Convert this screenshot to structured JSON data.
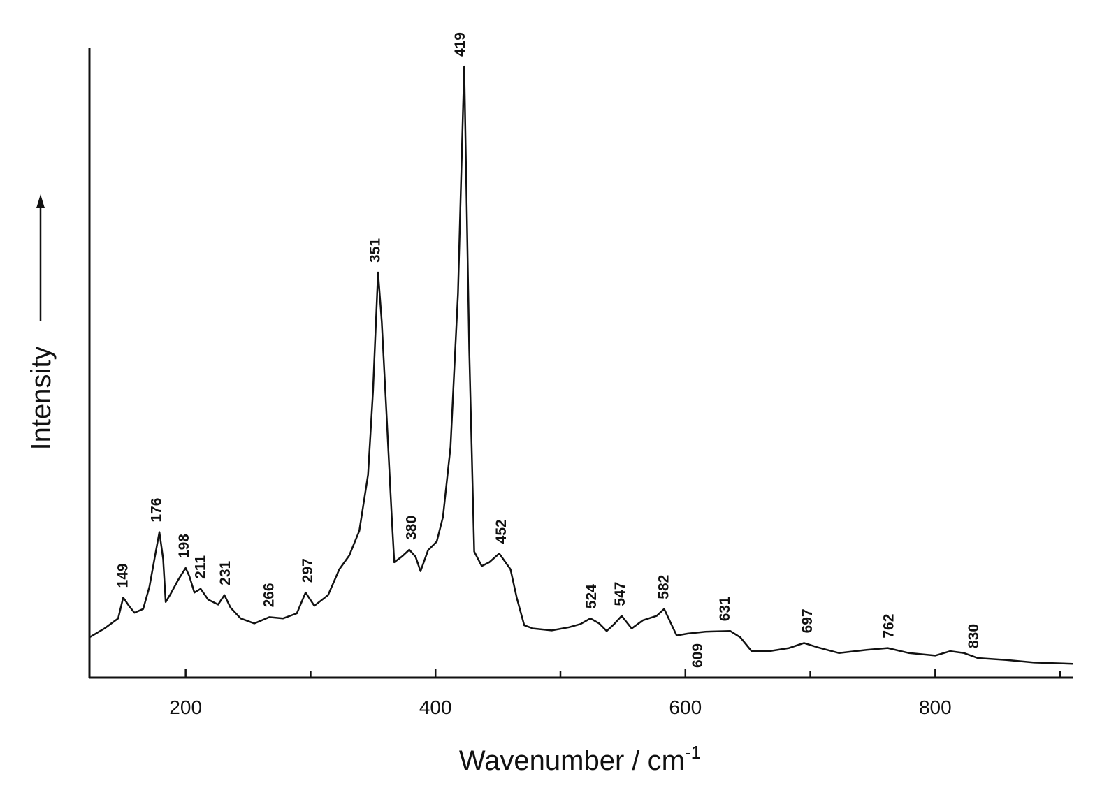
{
  "chart_data": {
    "type": "line",
    "xlabel": {
      "text": "Wavenumber / cm",
      "superscript": "-1"
    },
    "ylabel": "Intensity",
    "xlim": [
      123,
      910
    ],
    "ylim": [
      0,
      100
    ],
    "xticks": [
      200,
      400,
      600,
      800
    ],
    "xminor_ticks": [
      300,
      500,
      700,
      900
    ],
    "color": "#111111",
    "x": [
      123,
      135,
      146,
      150,
      155,
      159,
      166,
      171,
      175,
      179,
      182,
      184,
      188,
      194,
      200,
      203,
      207,
      212,
      218,
      226,
      231,
      236,
      244,
      255,
      267,
      278,
      289,
      296,
      303,
      314,
      323,
      331,
      339,
      346,
      350,
      354,
      357,
      361,
      365,
      367,
      373,
      379,
      384,
      388,
      394,
      401,
      406,
      412,
      418,
      423,
      427,
      431,
      437,
      443,
      451,
      460,
      465,
      471,
      478,
      493,
      507,
      516,
      524,
      531,
      537,
      543,
      549,
      557,
      566,
      577,
      583,
      588,
      593,
      602,
      616,
      636,
      644,
      653,
      667,
      683,
      695,
      706,
      723,
      745,
      762,
      779,
      800,
      812,
      823,
      834,
      857,
      879,
      910
    ],
    "values": [
      6.4,
      7.8,
      9.4,
      12.7,
      11.3,
      10.3,
      10.9,
      14.4,
      18.8,
      23.1,
      18.8,
      12.0,
      13.3,
      15.5,
      17.4,
      16.1,
      13.5,
      14.1,
      12.4,
      11.6,
      13.1,
      11.1,
      9.4,
      8.6,
      9.6,
      9.4,
      10.2,
      13.5,
      11.4,
      13.1,
      17.2,
      19.4,
      23.3,
      32.2,
      45.5,
      64.3,
      56.5,
      41.0,
      25.5,
      18.3,
      19.2,
      20.3,
      19.2,
      16.9,
      20.2,
      21.6,
      25.5,
      36.6,
      61.0,
      97.0,
      52.1,
      20.0,
      17.7,
      18.3,
      19.7,
      17.2,
      12.7,
      8.3,
      7.8,
      7.5,
      8.0,
      8.5,
      9.4,
      8.6,
      7.4,
      8.5,
      9.8,
      7.8,
      9.1,
      9.8,
      10.9,
      8.8,
      6.7,
      7.0,
      7.3,
      7.4,
      6.4,
      4.2,
      4.2,
      4.7,
      5.5,
      4.8,
      3.9,
      4.4,
      4.7,
      3.9,
      3.5,
      4.2,
      3.9,
      3.1,
      2.8,
      2.4,
      2.2
    ],
    "peak_labels": [
      149,
      176,
      198,
      211,
      231,
      266,
      297,
      351,
      380,
      419,
      452,
      524,
      547,
      582,
      609,
      631,
      697,
      762,
      830
    ]
  }
}
